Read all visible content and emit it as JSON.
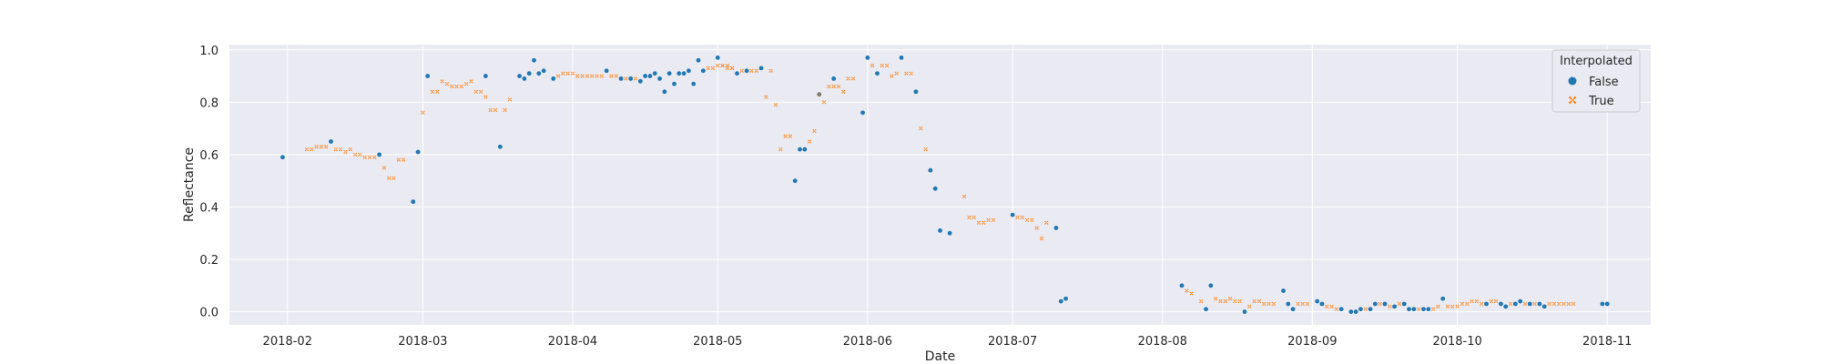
{
  "chart_data": {
    "type": "scatter",
    "xlabel": "Date",
    "ylabel": "Reflectance",
    "xlim": [
      "2018-01-20",
      "2018-11-10"
    ],
    "ylim": [
      -0.05,
      1.02
    ],
    "x_ticks": [
      "2018-02",
      "2018-03",
      "2018-04",
      "2018-05",
      "2018-06",
      "2018-07",
      "2018-08",
      "2018-09",
      "2018-10",
      "2018-11"
    ],
    "y_ticks": [
      "0.0",
      "0.2",
      "0.4",
      "0.6",
      "0.8",
      "1.0"
    ],
    "grid": true,
    "legend": {
      "title": "Interpolated",
      "placement": "top-right"
    },
    "colors": {
      "False": "#1f77b4",
      "True": "#ff7f0e",
      "background": "#eaeaf2",
      "grid": "#ffffff"
    },
    "series": [
      {
        "name": "False",
        "marker": "circle",
        "points": [
          [
            "2018-01-31",
            0.59
          ],
          [
            "2018-02-10",
            0.65
          ],
          [
            "2018-02-20",
            0.6
          ],
          [
            "2018-02-27",
            0.42
          ],
          [
            "2018-02-28",
            0.61
          ],
          [
            "2018-03-02",
            0.9
          ],
          [
            "2018-03-14",
            0.9
          ],
          [
            "2018-03-17",
            0.63
          ],
          [
            "2018-03-21",
            0.9
          ],
          [
            "2018-03-22",
            0.89
          ],
          [
            "2018-03-23",
            0.91
          ],
          [
            "2018-03-24",
            0.96
          ],
          [
            "2018-03-25",
            0.91
          ],
          [
            "2018-03-26",
            0.92
          ],
          [
            "2018-03-28",
            0.89
          ],
          [
            "2018-04-08",
            0.92
          ],
          [
            "2018-04-11",
            0.89
          ],
          [
            "2018-04-13",
            0.89
          ],
          [
            "2018-04-15",
            0.88
          ],
          [
            "2018-04-16",
            0.9
          ],
          [
            "2018-04-17",
            0.9
          ],
          [
            "2018-04-18",
            0.91
          ],
          [
            "2018-04-19",
            0.89
          ],
          [
            "2018-04-20",
            0.84
          ],
          [
            "2018-04-21",
            0.91
          ],
          [
            "2018-04-22",
            0.87
          ],
          [
            "2018-04-23",
            0.91
          ],
          [
            "2018-04-24",
            0.91
          ],
          [
            "2018-04-25",
            0.92
          ],
          [
            "2018-04-26",
            0.87
          ],
          [
            "2018-04-27",
            0.96
          ],
          [
            "2018-04-28",
            0.92
          ],
          [
            "2018-05-01",
            0.97
          ],
          [
            "2018-05-05",
            0.91
          ],
          [
            "2018-05-07",
            0.92
          ],
          [
            "2018-05-10",
            0.93
          ],
          [
            "2018-05-17",
            0.5
          ],
          [
            "2018-05-18",
            0.62
          ],
          [
            "2018-05-19",
            0.62
          ],
          [
            "2018-05-22",
            0.83
          ],
          [
            "2018-05-25",
            0.89
          ],
          [
            "2018-05-31",
            0.76
          ],
          [
            "2018-06-01",
            0.97
          ],
          [
            "2018-06-03",
            0.91
          ],
          [
            "2018-06-08",
            0.97
          ],
          [
            "2018-06-11",
            0.84
          ],
          [
            "2018-06-14",
            0.54
          ],
          [
            "2018-06-15",
            0.47
          ],
          [
            "2018-06-16",
            0.31
          ],
          [
            "2018-06-18",
            0.3
          ],
          [
            "2018-07-01",
            0.37
          ],
          [
            "2018-07-10",
            0.32
          ],
          [
            "2018-07-11",
            0.04
          ],
          [
            "2018-07-12",
            0.05
          ],
          [
            "2018-08-05",
            0.1
          ],
          [
            "2018-08-10",
            0.01
          ],
          [
            "2018-08-11",
            0.1
          ],
          [
            "2018-08-18",
            0.0
          ],
          [
            "2018-08-26",
            0.08
          ],
          [
            "2018-08-27",
            0.03
          ],
          [
            "2018-08-28",
            0.01
          ],
          [
            "2018-09-02",
            0.04
          ],
          [
            "2018-09-03",
            0.03
          ],
          [
            "2018-09-07",
            0.01
          ],
          [
            "2018-09-09",
            0.0
          ],
          [
            "2018-09-10",
            0.0
          ],
          [
            "2018-09-11",
            0.01
          ],
          [
            "2018-09-13",
            0.01
          ],
          [
            "2018-09-14",
            0.03
          ],
          [
            "2018-09-16",
            0.03
          ],
          [
            "2018-09-18",
            0.02
          ],
          [
            "2018-09-20",
            0.03
          ],
          [
            "2018-09-21",
            0.01
          ],
          [
            "2018-09-22",
            0.01
          ],
          [
            "2018-09-24",
            0.01
          ],
          [
            "2018-09-25",
            0.01
          ],
          [
            "2018-09-28",
            0.05
          ],
          [
            "2018-10-07",
            0.03
          ],
          [
            "2018-10-10",
            0.03
          ],
          [
            "2018-10-11",
            0.02
          ],
          [
            "2018-10-13",
            0.03
          ],
          [
            "2018-10-14",
            0.04
          ],
          [
            "2018-10-16",
            0.03
          ],
          [
            "2018-10-18",
            0.03
          ],
          [
            "2018-10-19",
            0.02
          ],
          [
            "2018-10-31",
            0.03
          ],
          [
            "2018-11-01",
            0.03
          ]
        ]
      },
      {
        "name": "True",
        "marker": "x",
        "points": [
          [
            "2018-02-05",
            0.62
          ],
          [
            "2018-02-06",
            0.62
          ],
          [
            "2018-02-07",
            0.63
          ],
          [
            "2018-02-08",
            0.63
          ],
          [
            "2018-02-09",
            0.63
          ],
          [
            "2018-02-11",
            0.62
          ],
          [
            "2018-02-12",
            0.62
          ],
          [
            "2018-02-13",
            0.61
          ],
          [
            "2018-02-14",
            0.62
          ],
          [
            "2018-02-15",
            0.6
          ],
          [
            "2018-02-16",
            0.6
          ],
          [
            "2018-02-17",
            0.59
          ],
          [
            "2018-02-18",
            0.59
          ],
          [
            "2018-02-19",
            0.59
          ],
          [
            "2018-02-21",
            0.55
          ],
          [
            "2018-02-22",
            0.51
          ],
          [
            "2018-02-23",
            0.51
          ],
          [
            "2018-02-24",
            0.58
          ],
          [
            "2018-02-25",
            0.58
          ],
          [
            "2018-03-01",
            0.76
          ],
          [
            "2018-03-03",
            0.84
          ],
          [
            "2018-03-04",
            0.84
          ],
          [
            "2018-03-05",
            0.88
          ],
          [
            "2018-03-06",
            0.87
          ],
          [
            "2018-03-07",
            0.86
          ],
          [
            "2018-03-08",
            0.86
          ],
          [
            "2018-03-09",
            0.86
          ],
          [
            "2018-03-10",
            0.87
          ],
          [
            "2018-03-11",
            0.88
          ],
          [
            "2018-03-12",
            0.84
          ],
          [
            "2018-03-13",
            0.84
          ],
          [
            "2018-03-14",
            0.82
          ],
          [
            "2018-03-15",
            0.77
          ],
          [
            "2018-03-16",
            0.77
          ],
          [
            "2018-03-18",
            0.77
          ],
          [
            "2018-03-19",
            0.81
          ],
          [
            "2018-03-29",
            0.9
          ],
          [
            "2018-03-30",
            0.91
          ],
          [
            "2018-03-31",
            0.91
          ],
          [
            "2018-04-01",
            0.91
          ],
          [
            "2018-04-02",
            0.9
          ],
          [
            "2018-04-03",
            0.9
          ],
          [
            "2018-04-04",
            0.9
          ],
          [
            "2018-04-05",
            0.9
          ],
          [
            "2018-04-06",
            0.9
          ],
          [
            "2018-04-07",
            0.9
          ],
          [
            "2018-04-09",
            0.9
          ],
          [
            "2018-04-10",
            0.9
          ],
          [
            "2018-04-12",
            0.89
          ],
          [
            "2018-04-14",
            0.89
          ],
          [
            "2018-04-29",
            0.93
          ],
          [
            "2018-04-30",
            0.93
          ],
          [
            "2018-05-01",
            0.94
          ],
          [
            "2018-05-02",
            0.94
          ],
          [
            "2018-05-03",
            0.93
          ],
          [
            "2018-05-04",
            0.93
          ],
          [
            "2018-05-02",
            0.94
          ],
          [
            "2018-05-03",
            0.94
          ],
          [
            "2018-05-04",
            0.93
          ],
          [
            "2018-05-06",
            0.92
          ],
          [
            "2018-05-08",
            0.92
          ],
          [
            "2018-05-09",
            0.92
          ],
          [
            "2018-05-11",
            0.82
          ],
          [
            "2018-05-12",
            0.92
          ],
          [
            "2018-05-13",
            0.79
          ],
          [
            "2018-05-14",
            0.62
          ],
          [
            "2018-05-15",
            0.67
          ],
          [
            "2018-05-16",
            0.67
          ],
          [
            "2018-05-20",
            0.65
          ],
          [
            "2018-05-21",
            0.69
          ],
          [
            "2018-05-22",
            0.83
          ],
          [
            "2018-05-23",
            0.8
          ],
          [
            "2018-05-24",
            0.86
          ],
          [
            "2018-05-25",
            0.86
          ],
          [
            "2018-05-26",
            0.86
          ],
          [
            "2018-05-27",
            0.84
          ],
          [
            "2018-05-28",
            0.89
          ],
          [
            "2018-05-29",
            0.89
          ],
          [
            "2018-06-02",
            0.94
          ],
          [
            "2018-06-04",
            0.94
          ],
          [
            "2018-06-05",
            0.94
          ],
          [
            "2018-06-06",
            0.9
          ],
          [
            "2018-06-07",
            0.91
          ],
          [
            "2018-06-09",
            0.91
          ],
          [
            "2018-06-10",
            0.91
          ],
          [
            "2018-06-12",
            0.7
          ],
          [
            "2018-06-13",
            0.62
          ],
          [
            "2018-06-21",
            0.44
          ],
          [
            "2018-06-22",
            0.36
          ],
          [
            "2018-06-23",
            0.36
          ],
          [
            "2018-06-24",
            0.34
          ],
          [
            "2018-06-25",
            0.34
          ],
          [
            "2018-06-26",
            0.35
          ],
          [
            "2018-06-27",
            0.35
          ],
          [
            "2018-07-02",
            0.36
          ],
          [
            "2018-07-03",
            0.36
          ],
          [
            "2018-07-04",
            0.35
          ],
          [
            "2018-07-05",
            0.35
          ],
          [
            "2018-07-06",
            0.32
          ],
          [
            "2018-07-07",
            0.28
          ],
          [
            "2018-07-08",
            0.34
          ],
          [
            "2018-08-06",
            0.08
          ],
          [
            "2018-08-07",
            0.07
          ],
          [
            "2018-08-09",
            0.04
          ],
          [
            "2018-08-12",
            0.05
          ],
          [
            "2018-08-13",
            0.04
          ],
          [
            "2018-08-14",
            0.04
          ],
          [
            "2018-08-15",
            0.05
          ],
          [
            "2018-08-16",
            0.04
          ],
          [
            "2018-08-17",
            0.04
          ],
          [
            "2018-08-19",
            0.02
          ],
          [
            "2018-08-20",
            0.04
          ],
          [
            "2018-08-21",
            0.04
          ],
          [
            "2018-08-22",
            0.03
          ],
          [
            "2018-08-23",
            0.03
          ],
          [
            "2018-08-24",
            0.03
          ],
          [
            "2018-08-29",
            0.03
          ],
          [
            "2018-08-30",
            0.03
          ],
          [
            "2018-08-31",
            0.03
          ],
          [
            "2018-09-04",
            0.02
          ],
          [
            "2018-09-05",
            0.02
          ],
          [
            "2018-09-06",
            0.01
          ],
          [
            "2018-09-12",
            0.01
          ],
          [
            "2018-09-15",
            0.03
          ],
          [
            "2018-09-17",
            0.02
          ],
          [
            "2018-09-19",
            0.03
          ],
          [
            "2018-09-23",
            0.01
          ],
          [
            "2018-09-26",
            0.01
          ],
          [
            "2018-09-27",
            0.02
          ],
          [
            "2018-09-29",
            0.02
          ],
          [
            "2018-09-30",
            0.02
          ],
          [
            "2018-10-01",
            0.02
          ],
          [
            "2018-10-02",
            0.03
          ],
          [
            "2018-10-03",
            0.03
          ],
          [
            "2018-10-04",
            0.04
          ],
          [
            "2018-10-05",
            0.04
          ],
          [
            "2018-10-06",
            0.03
          ],
          [
            "2018-10-08",
            0.04
          ],
          [
            "2018-10-09",
            0.04
          ],
          [
            "2018-10-12",
            0.03
          ],
          [
            "2018-10-15",
            0.03
          ],
          [
            "2018-10-17",
            0.03
          ],
          [
            "2018-10-20",
            0.03
          ],
          [
            "2018-10-21",
            0.03
          ],
          [
            "2018-10-22",
            0.03
          ],
          [
            "2018-10-23",
            0.03
          ],
          [
            "2018-10-24",
            0.03
          ],
          [
            "2018-10-25",
            0.03
          ]
        ]
      }
    ]
  }
}
